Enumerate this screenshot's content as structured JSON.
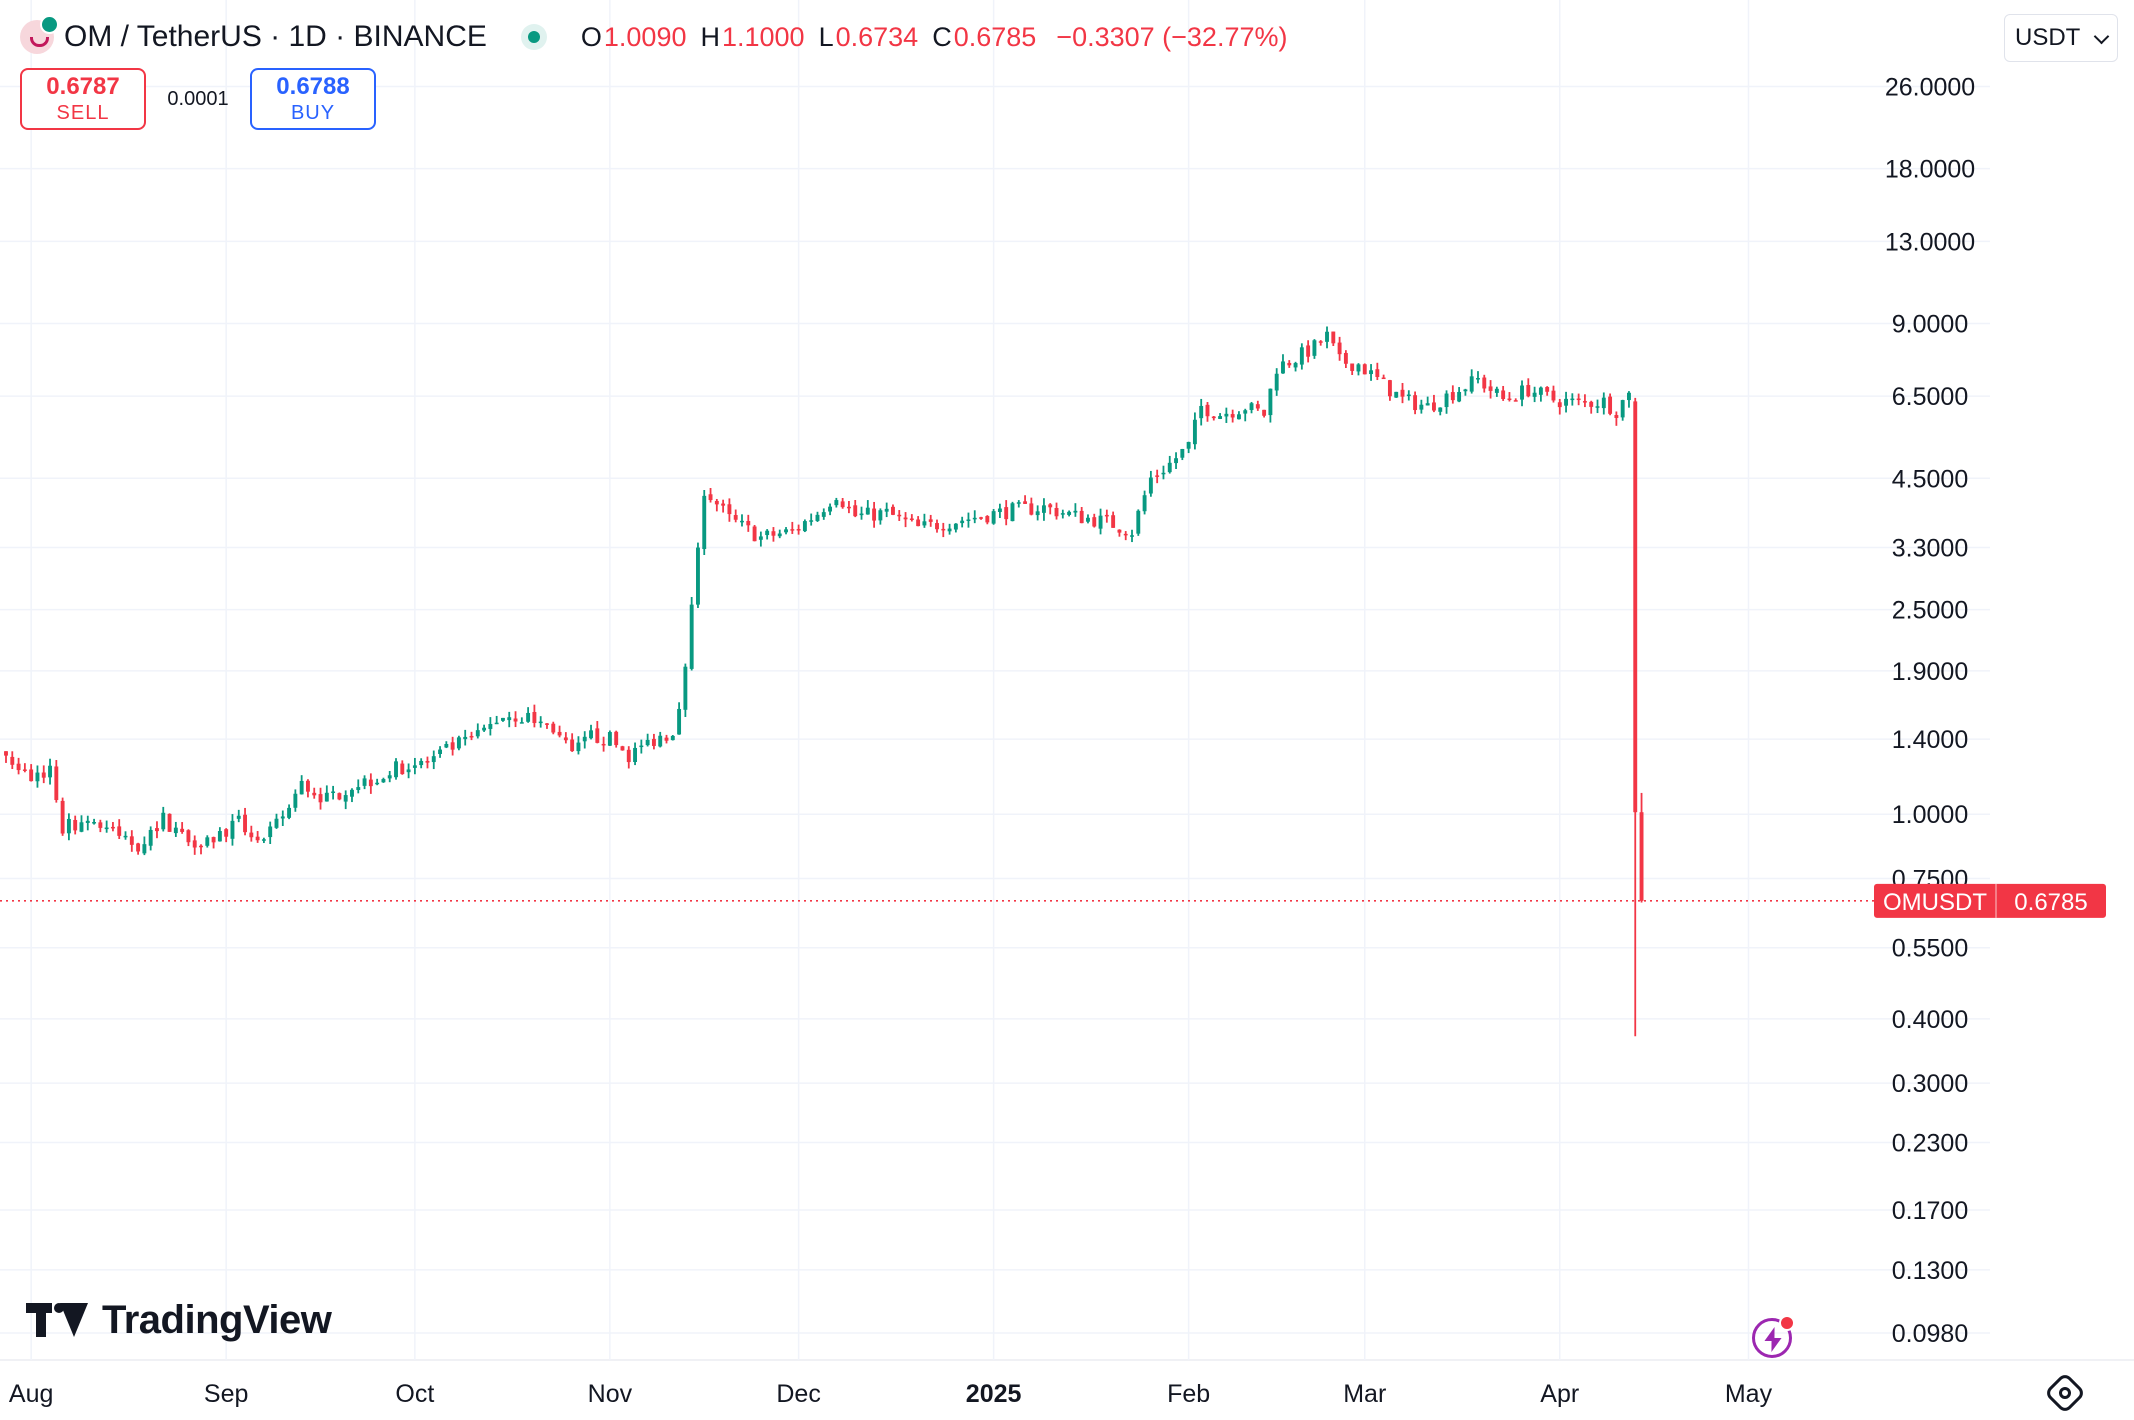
{
  "header": {
    "title": "OM / TetherUS · 1D · BINANCE",
    "ohlc": [
      {
        "key": "O",
        "value": "1.0090"
      },
      {
        "key": "H",
        "value": "1.1000"
      },
      {
        "key": "L",
        "value": "0.6734"
      },
      {
        "key": "C",
        "value": "0.6785"
      }
    ],
    "change": "−0.3307 (−32.77%)"
  },
  "trade": {
    "sell_price": "0.6787",
    "sell_label": "SELL",
    "spread": "0.0001",
    "buy_price": "0.6788",
    "buy_label": "BUY"
  },
  "currency": "USDT",
  "branding": {
    "name": "TradingView"
  },
  "price_tag": {
    "symbol": "OMUSDT",
    "price": "0.6785"
  },
  "colors": {
    "up": "#089981",
    "down": "#f23645",
    "grid": "#f0f3fa",
    "axis_text": "#131722"
  },
  "chart_data": {
    "type": "candlestick",
    "title": "OM / TetherUS · 1D · BINANCE",
    "y_scale": "log",
    "ylim": [
      0.09,
      28
    ],
    "y_ticks": [
      "0.0980",
      "0.1300",
      "0.1700",
      "0.2300",
      "0.3000",
      "0.4000",
      "0.5500",
      "0.7500",
      "1.0000",
      "1.4000",
      "1.9000",
      "2.5000",
      "3.3000",
      "4.5000",
      "6.5000",
      "9.0000",
      "13.0000",
      "18.0000",
      "26.0000"
    ],
    "x_ticks": [
      {
        "label": "Aug",
        "date": "2024-08-01",
        "bold": false
      },
      {
        "label": "Sep",
        "date": "2024-09-01",
        "bold": false
      },
      {
        "label": "Oct",
        "date": "2024-10-01",
        "bold": false
      },
      {
        "label": "Nov",
        "date": "2024-11-01",
        "bold": false
      },
      {
        "label": "Dec",
        "date": "2024-12-01",
        "bold": false
      },
      {
        "label": "2025",
        "date": "2025-01-01",
        "bold": true
      },
      {
        "label": "Feb",
        "date": "2025-02-01",
        "bold": false
      },
      {
        "label": "Mar",
        "date": "2025-03-01",
        "bold": false
      },
      {
        "label": "Apr",
        "date": "2025-04-01",
        "bold": false
      },
      {
        "label": "May",
        "date": "2025-05-01",
        "bold": false
      }
    ],
    "xlim": [
      "2024-07-28",
      "2025-05-20"
    ],
    "last_price": 0.6785,
    "grid": true,
    "series": [
      {
        "date": "2024-07-28",
        "close": 1.3
      },
      {
        "date": "2024-08-01",
        "close": 1.17
      },
      {
        "date": "2024-08-04",
        "close": 1.23
      },
      {
        "date": "2024-08-06",
        "close": 0.94
      },
      {
        "date": "2024-08-10",
        "close": 0.98
      },
      {
        "date": "2024-08-14",
        "close": 0.92
      },
      {
        "date": "2024-08-18",
        "close": 0.87
      },
      {
        "date": "2024-08-22",
        "close": 0.98
      },
      {
        "date": "2024-08-26",
        "close": 0.89
      },
      {
        "date": "2024-08-30",
        "close": 0.9
      },
      {
        "date": "2024-09-03",
        "close": 0.96
      },
      {
        "date": "2024-09-07",
        "close": 0.88
      },
      {
        "date": "2024-09-11",
        "close": 1.03
      },
      {
        "date": "2024-09-13",
        "close": 1.14
      },
      {
        "date": "2024-09-17",
        "close": 1.07
      },
      {
        "date": "2024-09-21",
        "close": 1.14
      },
      {
        "date": "2024-09-25",
        "close": 1.18
      },
      {
        "date": "2024-09-29",
        "close": 1.24
      },
      {
        "date": "2024-10-03",
        "close": 1.26
      },
      {
        "date": "2024-10-07",
        "close": 1.35
      },
      {
        "date": "2024-10-11",
        "close": 1.42
      },
      {
        "date": "2024-10-15",
        "close": 1.56
      },
      {
        "date": "2024-10-19",
        "close": 1.54
      },
      {
        "date": "2024-10-23",
        "close": 1.47
      },
      {
        "date": "2024-10-26",
        "close": 1.3
      },
      {
        "date": "2024-10-29",
        "close": 1.42
      },
      {
        "date": "2024-11-01",
        "close": 1.4
      },
      {
        "date": "2024-11-04",
        "close": 1.3
      },
      {
        "date": "2024-11-08",
        "close": 1.4
      },
      {
        "date": "2024-11-11",
        "close": 1.45
      },
      {
        "date": "2024-11-13",
        "close": 1.9
      },
      {
        "date": "2024-11-15",
        "close": 3.3
      },
      {
        "date": "2024-11-16",
        "close": 4.3
      },
      {
        "date": "2024-11-20",
        "close": 3.75
      },
      {
        "date": "2024-11-25",
        "close": 3.45
      },
      {
        "date": "2024-11-30",
        "close": 3.55
      },
      {
        "date": "2024-12-04",
        "close": 3.85
      },
      {
        "date": "2024-12-07",
        "close": 4.2
      },
      {
        "date": "2024-12-10",
        "close": 3.8
      },
      {
        "date": "2024-12-15",
        "close": 3.85
      },
      {
        "date": "2024-12-20",
        "close": 3.6
      },
      {
        "date": "2024-12-25",
        "close": 3.7
      },
      {
        "date": "2024-12-30",
        "close": 3.8
      },
      {
        "date": "2025-01-04",
        "close": 3.9
      },
      {
        "date": "2025-01-09",
        "close": 3.95
      },
      {
        "date": "2025-01-14",
        "close": 3.8
      },
      {
        "date": "2025-01-19",
        "close": 3.7
      },
      {
        "date": "2025-01-23",
        "close": 3.55
      },
      {
        "date": "2025-01-26",
        "close": 4.5
      },
      {
        "date": "2025-01-29",
        "close": 4.8
      },
      {
        "date": "2025-02-01",
        "close": 5.2
      },
      {
        "date": "2025-02-03",
        "close": 6.2
      },
      {
        "date": "2025-02-06",
        "close": 6.0
      },
      {
        "date": "2025-02-10",
        "close": 6.2
      },
      {
        "date": "2025-02-13",
        "close": 6.0
      },
      {
        "date": "2025-02-15",
        "close": 7.4
      },
      {
        "date": "2025-02-18",
        "close": 7.7
      },
      {
        "date": "2025-02-21",
        "close": 8.1
      },
      {
        "date": "2025-02-23",
        "close": 8.5
      },
      {
        "date": "2025-02-25",
        "close": 7.6
      },
      {
        "date": "2025-02-28",
        "close": 7.5
      },
      {
        "date": "2025-03-03",
        "close": 7.0
      },
      {
        "date": "2025-03-07",
        "close": 6.4
      },
      {
        "date": "2025-03-11",
        "close": 6.2
      },
      {
        "date": "2025-03-15",
        "close": 6.6
      },
      {
        "date": "2025-03-19",
        "close": 7.0
      },
      {
        "date": "2025-03-23",
        "close": 6.4
      },
      {
        "date": "2025-03-27",
        "close": 6.7
      },
      {
        "date": "2025-03-31",
        "close": 6.4
      },
      {
        "date": "2025-04-04",
        "close": 6.3
      },
      {
        "date": "2025-04-08",
        "close": 6.35
      },
      {
        "date": "2025-04-10",
        "close": 6.1
      },
      {
        "date": "2025-04-12",
        "close": 6.6
      },
      {
        "date": "2025-04-13",
        "close": 1.009
      },
      {
        "date": "2025-04-14",
        "close": 0.6785
      }
    ]
  }
}
